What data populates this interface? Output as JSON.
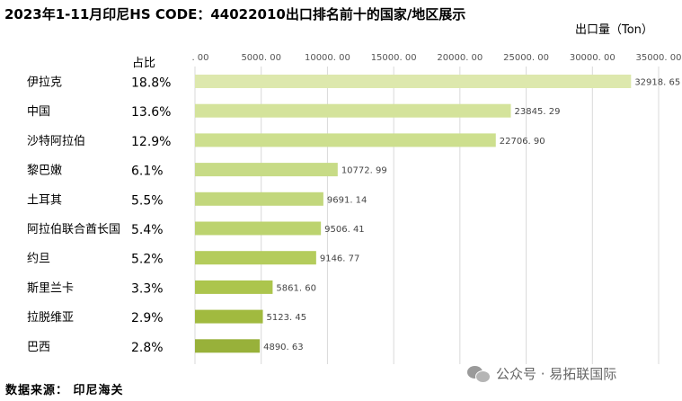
{
  "title": "2023年1-11月印尼HS CODE：44022010出口排名前十的国家/地区展示",
  "unit_label": "出口量（Ton）",
  "share_header": "占比",
  "footer": {
    "source": "数据来源： 印尼海关",
    "watermark": "公众号 · 易拓联国际",
    "watermark_icon": "wechat-icon"
  },
  "chart_data": {
    "type": "bar",
    "orientation": "horizontal",
    "categories": [
      "伊拉克",
      "中国",
      "沙特阿拉伯",
      "黎巴嫩",
      "土耳其",
      "阿拉伯联合酋长国",
      "约旦",
      "斯里兰卡",
      "拉脱维亚",
      "巴西"
    ],
    "values": [
      32918.65,
      23845.29,
      22706.9,
      10772.99,
      9691.14,
      9506.41,
      9146.77,
      5861.6,
      5123.45,
      4890.63
    ],
    "value_labels": [
      "32918. 65",
      "23845. 29",
      "22706. 90",
      "10772. 99",
      "9691. 14",
      "9506. 41",
      "9146. 77",
      "5861. 60",
      "5123. 45",
      "4890. 63"
    ],
    "shares": [
      "18.8%",
      "13.6%",
      "12.9%",
      "6.1%",
      "5.5%",
      "5.4%",
      "5.2%",
      "3.3%",
      "2.9%",
      "2.8%"
    ],
    "bar_colors": [
      "#dde8ad",
      "#d4e39b",
      "#cddf8e",
      "#c7db86",
      "#c2d77c",
      "#bcd36f",
      "#b4cc5c",
      "#acc54d",
      "#a1ba3f",
      "#98b13a"
    ],
    "xlim": [
      0,
      35000
    ],
    "xticks": [
      0,
      5000,
      10000,
      15000,
      20000,
      25000,
      30000,
      35000
    ],
    "xtick_labels": [
      ". 00",
      "5000. 00",
      "10000. 00",
      "15000. 00",
      "20000. 00",
      "25000. 00",
      "30000. 00",
      "35000. 00"
    ],
    "x_axis_position": "top",
    "grid": true,
    "grid_color": "#d9d9d9"
  }
}
